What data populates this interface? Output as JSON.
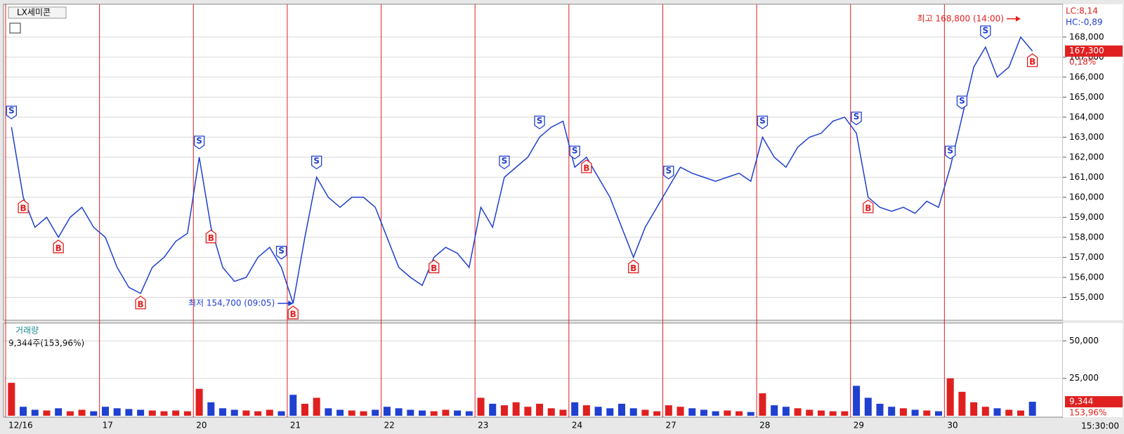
{
  "chart_data": [
    {
      "type": "line",
      "title": "LX세미콘",
      "categories": [
        "12/16",
        null,
        null,
        null,
        null,
        null,
        null,
        null,
        "17",
        null,
        null,
        null,
        null,
        null,
        null,
        null,
        "20",
        null,
        null,
        null,
        null,
        null,
        null,
        null,
        "21",
        null,
        null,
        null,
        null,
        null,
        null,
        null,
        "22",
        null,
        null,
        null,
        null,
        null,
        null,
        null,
        "23",
        null,
        null,
        null,
        null,
        null,
        null,
        null,
        "24",
        null,
        null,
        null,
        null,
        null,
        null,
        null,
        "27",
        null,
        null,
        null,
        null,
        null,
        null,
        null,
        "28",
        null,
        null,
        null,
        null,
        null,
        null,
        null,
        "29",
        null,
        null,
        null,
        null,
        null,
        null,
        null,
        "30",
        null,
        null,
        null,
        null,
        null,
        null,
        null
      ],
      "series": [
        {
          "name": "LX세미콘",
          "color": "#1f3fd0",
          "values": [
            163500,
            160000,
            158500,
            159000,
            158000,
            159000,
            159500,
            158500,
            158000,
            156500,
            155500,
            155200,
            156500,
            157000,
            157800,
            158200,
            162000,
            158500,
            156500,
            155800,
            156000,
            157000,
            157500,
            156500,
            154700,
            158000,
            161000,
            160000,
            159500,
            160000,
            160000,
            159500,
            158000,
            156500,
            156000,
            155600,
            157000,
            157500,
            157200,
            156500,
            159500,
            158500,
            161000,
            161500,
            162000,
            163000,
            163500,
            163800,
            161500,
            162000,
            161000,
            160000,
            158500,
            157000,
            158500,
            159500,
            160500,
            161500,
            161200,
            161000,
            160800,
            161000,
            161200,
            160800,
            163000,
            162000,
            161500,
            162500,
            163000,
            163200,
            163800,
            164000,
            163200,
            160000,
            159500,
            159300,
            159500,
            159200,
            159800,
            159500,
            161500,
            164000,
            166500,
            167500,
            166000,
            166500,
            168000,
            167300
          ]
        }
      ],
      "signals": [
        {
          "x": 0,
          "label": "S"
        },
        {
          "x": 1,
          "label": "B"
        },
        {
          "x": 4,
          "label": "B"
        },
        {
          "x": 11,
          "label": "B"
        },
        {
          "x": 16,
          "label": "S"
        },
        {
          "x": 17,
          "label": "B"
        },
        {
          "x": 23,
          "label": "S"
        },
        {
          "x": 24,
          "label": "B"
        },
        {
          "x": 26,
          "label": "S"
        },
        {
          "x": 36,
          "label": "B"
        },
        {
          "x": 42,
          "label": "S"
        },
        {
          "x": 45,
          "label": "S"
        },
        {
          "x": 48,
          "label": "S"
        },
        {
          "x": 49,
          "label": "B"
        },
        {
          "x": 53,
          "label": "B"
        },
        {
          "x": 56,
          "label": "S"
        },
        {
          "x": 64,
          "label": "S"
        },
        {
          "x": 72,
          "label": "S"
        },
        {
          "x": 73,
          "label": "B"
        },
        {
          "x": 80,
          "label": "S"
        },
        {
          "x": 81,
          "label": "S"
        },
        {
          "x": 83,
          "label": "S"
        },
        {
          "x": 87,
          "label": "B"
        }
      ],
      "high_note": "최고 168,800 (14:00)",
      "low_note": "최저 154,700 (09:05)",
      "lc": "LC:8,14",
      "hc": "HC:-0,89",
      "last_price": {
        "value": 167300,
        "label": "167,300"
      },
      "change": "0,18%",
      "ylim": [
        154000,
        169500
      ],
      "yticks": [
        {
          "value": 155000,
          "label": "155,000"
        },
        {
          "value": 156000,
          "label": "156,000"
        },
        {
          "value": 157000,
          "label": "157,000"
        },
        {
          "value": 158000,
          "label": "158,000"
        },
        {
          "value": 159000,
          "label": "159,000"
        },
        {
          "value": 160000,
          "label": "160,000"
        },
        {
          "value": 161000,
          "label": "161,000"
        },
        {
          "value": 162000,
          "label": "162,000"
        },
        {
          "value": 163000,
          "label": "163,000"
        },
        {
          "value": 164000,
          "label": "164,000"
        },
        {
          "value": 165000,
          "label": "165,000"
        },
        {
          "value": 166000,
          "label": "166,000"
        },
        {
          "value": 167000,
          "label": "167,000"
        },
        {
          "value": 168000,
          "label": "168,000"
        }
      ],
      "grid": true
    },
    {
      "type": "bar",
      "title": "거래량",
      "subtitle": "9,344주(153,96%)",
      "values": [
        22000,
        6000,
        4000,
        3500,
        5000,
        3000,
        4000,
        3000,
        6000,
        5000,
        4500,
        4000,
        3500,
        3000,
        3500,
        3000,
        18000,
        9000,
        5000,
        4000,
        3500,
        3000,
        4000,
        3000,
        14000,
        8000,
        12000,
        5000,
        4000,
        3500,
        3000,
        4000,
        6000,
        5000,
        4000,
        3500,
        3000,
        4000,
        3500,
        3000,
        12000,
        8000,
        7000,
        9000,
        6000,
        8000,
        5000,
        4000,
        9000,
        7000,
        6000,
        5000,
        8000,
        5000,
        4000,
        3000,
        7000,
        6000,
        5000,
        4000,
        3000,
        3500,
        3000,
        2500,
        15000,
        7000,
        6000,
        5000,
        4000,
        3500,
        3000,
        3000,
        20000,
        12000,
        8000,
        6000,
        5000,
        4000,
        3500,
        3000,
        25000,
        16000,
        9000,
        6000,
        5000,
        4000,
        3500,
        9344
      ],
      "colors": [
        "#e02020",
        "#2040d0"
      ],
      "last_volume": {
        "value": 9344,
        "label": "9,344"
      },
      "ratio": "153,96%",
      "ylim": [
        0,
        61000
      ],
      "yticks": [
        {
          "value": 25000,
          "label": "25,000"
        },
        {
          "value": 50000,
          "label": "50,000"
        }
      ],
      "grid": true,
      "time": "15:30:00"
    }
  ]
}
